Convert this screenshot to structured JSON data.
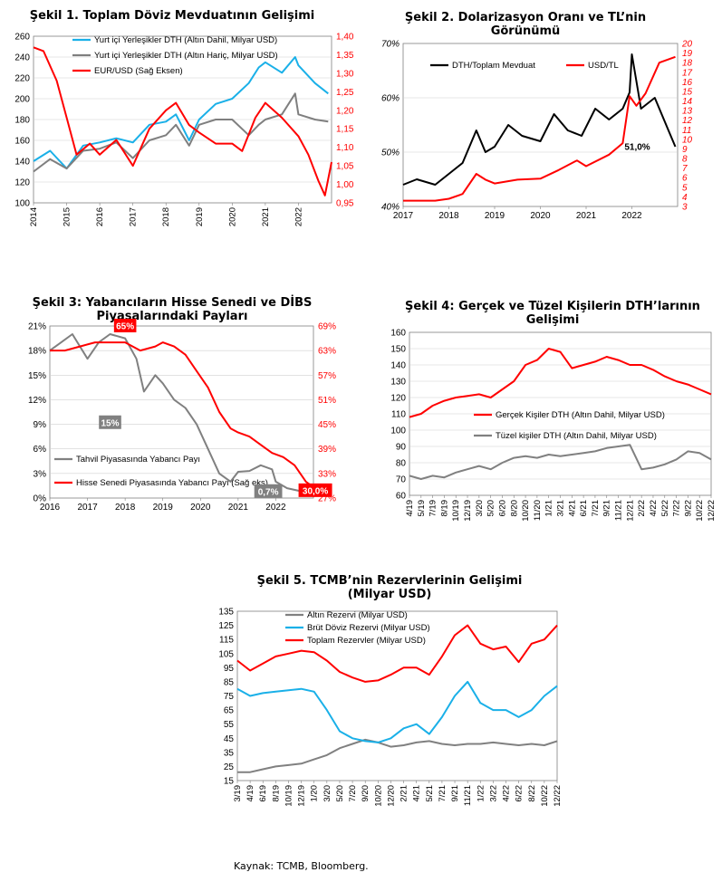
{
  "source_note": "Kaynak: TCMB, Bloomberg.",
  "chart_data": [
    {
      "id": "c1",
      "type": "line",
      "title": "Şekil 1. Toplam Döviz Mevduatının Gelişimi",
      "x_ticks": [
        "2014",
        "2015",
        "2016",
        "2017",
        "2018",
        "2019",
        "2020",
        "2021",
        "2022"
      ],
      "xlim": [
        2014,
        2023
      ],
      "ylim": [
        100,
        260
      ],
      "y_ticks": [
        "100",
        "120",
        "140",
        "160",
        "180",
        "200",
        "220",
        "240",
        "260"
      ],
      "y2lim": [
        0.95,
        1.4
      ],
      "y2_ticks": [
        "0,95",
        "1,00",
        "1,05",
        "1,10",
        "1,15",
        "1,20",
        "1,25",
        "1,30",
        "1,35",
        "1,40"
      ],
      "grid": true,
      "legend": "top-left",
      "series": [
        {
          "name": "Yurt içi Yerleşikler DTH (Altın Dahil, Milyar USD)",
          "color": "#1ab0e8",
          "axis": "left",
          "x": [
            2014,
            2014.5,
            2015,
            2015.5,
            2016,
            2016.5,
            2017,
            2017.5,
            2018,
            2018.3,
            2018.7,
            2019,
            2019.5,
            2020,
            2020.5,
            2020.8,
            2021,
            2021.5,
            2021.9,
            2022,
            2022.5,
            2022.9
          ],
          "y": [
            140,
            150,
            133,
            155,
            158,
            162,
            158,
            175,
            178,
            185,
            160,
            180,
            195,
            200,
            215,
            230,
            235,
            225,
            240,
            232,
            215,
            205
          ]
        },
        {
          "name": "Yurt içi Yerleşikler DTH (Altın Hariç, Milyar USD)",
          "color": "#7f7f7f",
          "axis": "left",
          "x": [
            2014,
            2014.5,
            2015,
            2015.5,
            2016,
            2016.5,
            2017,
            2017.5,
            2018,
            2018.3,
            2018.7,
            2019,
            2019.5,
            2020,
            2020.5,
            2020.8,
            2021,
            2021.5,
            2021.9,
            2022,
            2022.5,
            2022.9
          ],
          "y": [
            130,
            142,
            133,
            150,
            152,
            158,
            143,
            160,
            165,
            175,
            155,
            175,
            180,
            180,
            165,
            175,
            180,
            185,
            205,
            185,
            180,
            178
          ]
        },
        {
          "name": "EUR/USD (Sağ Eksen)",
          "color": "#ff0000",
          "axis": "right",
          "x": [
            2014,
            2014.3,
            2014.7,
            2015,
            2015.3,
            2015.7,
            2016,
            2016.5,
            2017,
            2017.5,
            2018,
            2018.3,
            2018.7,
            2019,
            2019.5,
            2020,
            2020.3,
            2020.7,
            2021,
            2021.5,
            2022,
            2022.3,
            2022.6,
            2022.8,
            2023
          ],
          "y": [
            1.37,
            1.36,
            1.28,
            1.18,
            1.08,
            1.11,
            1.08,
            1.12,
            1.05,
            1.15,
            1.2,
            1.22,
            1.16,
            1.14,
            1.11,
            1.11,
            1.09,
            1.18,
            1.22,
            1.18,
            1.13,
            1.08,
            1.01,
            0.97,
            1.06
          ]
        }
      ]
    },
    {
      "id": "c2",
      "type": "line",
      "title": "Şekil 2. Dolarizasyon Oranı ve TL’nin Görünümü",
      "x_ticks": [
        "2017",
        "2018",
        "2019",
        "2020",
        "2021",
        "2022"
      ],
      "xlim": [
        2017,
        2023
      ],
      "ylim": [
        40,
        70
      ],
      "y_ticks": [
        "40%",
        "50%",
        "60%",
        "70%"
      ],
      "y2lim": [
        3,
        20
      ],
      "y2_ticks": [
        "3",
        "4",
        "5",
        "6",
        "7",
        "8",
        "9",
        "10",
        "11",
        "12",
        "13",
        "14",
        "15",
        "16",
        "17",
        "18",
        "19",
        "20"
      ],
      "grid": true,
      "legend": "top",
      "annotations": [
        "51,0%"
      ],
      "series": [
        {
          "name": "DTH/Toplam Mevduat",
          "color": "#000000",
          "axis": "left",
          "x": [
            2017,
            2017.3,
            2017.7,
            2018,
            2018.3,
            2018.6,
            2018.8,
            2019,
            2019.3,
            2019.6,
            2020,
            2020.3,
            2020.6,
            2020.9,
            2021.2,
            2021.5,
            2021.8,
            2021.95,
            2022,
            2022.2,
            2022.5,
            2022.8,
            2022.95
          ],
          "y": [
            44,
            45,
            44,
            46,
            48,
            54,
            50,
            51,
            55,
            53,
            52,
            57,
            54,
            53,
            58,
            56,
            58,
            61,
            68,
            58,
            60,
            54,
            51
          ]
        },
        {
          "name": "USD/TL",
          "color": "#ff0000",
          "axis": "right",
          "x": [
            2017,
            2017.3,
            2017.7,
            2018,
            2018.3,
            2018.6,
            2018.8,
            2019,
            2019.5,
            2020,
            2020.4,
            2020.8,
            2021,
            2021.5,
            2021.8,
            2021.95,
            2022.1,
            2022.3,
            2022.6,
            2022.95
          ],
          "y": [
            3.6,
            3.6,
            3.6,
            3.8,
            4.3,
            6.4,
            5.8,
            5.4,
            5.8,
            5.9,
            6.8,
            7.8,
            7.2,
            8.4,
            9.6,
            14.5,
            13.5,
            14.8,
            18.0,
            18.6
          ]
        }
      ]
    },
    {
      "id": "c3",
      "type": "line",
      "title": "Şekil 3: Yabancıların Hisse Senedi ve DİBS Piyasalarındaki Payları",
      "x_ticks": [
        "2016",
        "2017",
        "2018",
        "2019",
        "2020",
        "2021",
        "2022"
      ],
      "xlim": [
        2016,
        2023
      ],
      "ylim": [
        0,
        21
      ],
      "y_ticks": [
        "0%",
        "3%",
        "6%",
        "9%",
        "12%",
        "15%",
        "18%",
        "21%"
      ],
      "y2lim": [
        27,
        69
      ],
      "y2_ticks": [
        "27%",
        "33%",
        "39%",
        "45%",
        "51%",
        "57%",
        "63%",
        "69%"
      ],
      "grid": true,
      "legend": "bottom-left",
      "annotations": [
        "65%",
        "15%",
        "0,7%",
        "30,0%"
      ],
      "series": [
        {
          "name": "Tahvil Piyasasında Yabancı Payı",
          "color": "#808080",
          "axis": "left",
          "x": [
            2016,
            2016.3,
            2016.6,
            2017,
            2017.3,
            2017.6,
            2018,
            2018.3,
            2018.5,
            2018.8,
            2019,
            2019.3,
            2019.6,
            2019.9,
            2020.2,
            2020.5,
            2020.8,
            2021,
            2021.3,
            2021.6,
            2021.9,
            2022,
            2022.3,
            2022.6,
            2022.95
          ],
          "y": [
            18,
            19,
            20,
            17,
            19,
            20,
            19.5,
            17,
            13,
            15,
            14,
            12,
            11,
            9,
            6,
            3,
            2,
            3.2,
            3.3,
            4,
            3.5,
            2,
            1.2,
            0.9,
            0.7
          ]
        },
        {
          "name": "Hisse Senedi Piyasasında Yabancı Payı (Sağ eks)",
          "color": "#ff0000",
          "axis": "right",
          "x": [
            2016,
            2016.4,
            2016.8,
            2017.2,
            2017.6,
            2018,
            2018.4,
            2018.8,
            2019,
            2019.3,
            2019.6,
            2019.9,
            2020.2,
            2020.5,
            2020.8,
            2021,
            2021.3,
            2021.6,
            2021.9,
            2022.2,
            2022.5,
            2022.8,
            2022.95
          ],
          "y": [
            63,
            63,
            64,
            65,
            65,
            65,
            63,
            64,
            65,
            64,
            62,
            58,
            54,
            48,
            44,
            43,
            42,
            40,
            38,
            37,
            35,
            31,
            30
          ]
        }
      ]
    },
    {
      "id": "c4",
      "type": "line",
      "title": "Şekil 4: Gerçek ve Tüzel Kişilerin DTH’larının Gelişimi",
      "x_ticks": [
        "4/19",
        "5/19",
        "7/19",
        "8/19",
        "10/19",
        "12/19",
        "3/20",
        "5/20",
        "6/20",
        "8/20",
        "10/20",
        "11/20",
        "1/21",
        "3/21",
        "4/21",
        "6/21",
        "7/21",
        "9/21",
        "11/21",
        "12/21",
        "2/22",
        "4/22",
        "5/22",
        "7/22",
        "9/22",
        "10/22",
        "12/22"
      ],
      "ylim": [
        60,
        160
      ],
      "y_ticks": [
        "60",
        "70",
        "80",
        "90",
        "100",
        "110",
        "120",
        "130",
        "140",
        "150",
        "160"
      ],
      "grid": true,
      "legend": "middle-right",
      "series": [
        {
          "name": "Gerçek Kişiler DTH (Altın Dahil, Milyar USD)",
          "color": "#ff0000",
          "y": [
            108,
            110,
            115,
            118,
            120,
            121,
            122,
            120,
            125,
            130,
            140,
            143,
            150,
            148,
            138,
            140,
            142,
            145,
            143,
            140,
            140,
            137,
            133,
            130,
            128,
            125,
            122
          ]
        },
        {
          "name": "Tüzel kişiler DTH (Altın Dahil, Milyar USD)",
          "color": "#808080",
          "y": [
            72,
            70,
            72,
            71,
            74,
            76,
            78,
            76,
            80,
            83,
            84,
            83,
            85,
            84,
            85,
            86,
            87,
            89,
            90,
            91,
            76,
            77,
            79,
            82,
            87,
            86,
            82
          ]
        }
      ]
    },
    {
      "id": "c5",
      "type": "line",
      "title": "Şekil 5. TCMB’nin Rezervlerinin Gelişimi (Milyar USD)",
      "x_ticks": [
        "3/19",
        "4/19",
        "6/19",
        "8/19",
        "10/19",
        "12/19",
        "1/20",
        "3/20",
        "5/20",
        "7/20",
        "9/20",
        "10/20",
        "12/20",
        "2/21",
        "4/21",
        "5/21",
        "7/21",
        "9/21",
        "11/21",
        "1/22",
        "3/22",
        "4/22",
        "6/22",
        "8/22",
        "10/22",
        "12/22"
      ],
      "ylim": [
        15,
        135
      ],
      "y_ticks": [
        "15",
        "25",
        "35",
        "45",
        "55",
        "65",
        "75",
        "85",
        "95",
        "105",
        "115",
        "125",
        "135"
      ],
      "grid": false,
      "legend": "top-left",
      "series": [
        {
          "name": "Altın Rezervi (Milyar USD)",
          "color": "#808080",
          "y": [
            21,
            21,
            23,
            25,
            26,
            27,
            30,
            33,
            38,
            41,
            44,
            42,
            39,
            40,
            42,
            43,
            41,
            40,
            41,
            41,
            42,
            41,
            40,
            41,
            40,
            43
          ]
        },
        {
          "name": "Brüt Döviz Rezervi (Milyar USD)",
          "color": "#1ab0e8",
          "y": [
            80,
            75,
            77,
            78,
            79,
            80,
            78,
            65,
            50,
            45,
            43,
            42,
            45,
            52,
            55,
            48,
            60,
            75,
            85,
            70,
            65,
            65,
            60,
            65,
            75,
            82
          ]
        },
        {
          "name": "Toplam Rezervler (Milyar USD)",
          "color": "#ff0000",
          "y": [
            100,
            93,
            98,
            103,
            105,
            107,
            106,
            100,
            92,
            88,
            85,
            86,
            90,
            95,
            95,
            90,
            103,
            118,
            125,
            112,
            108,
            110,
            99,
            112,
            115,
            125
          ]
        }
      ]
    }
  ]
}
